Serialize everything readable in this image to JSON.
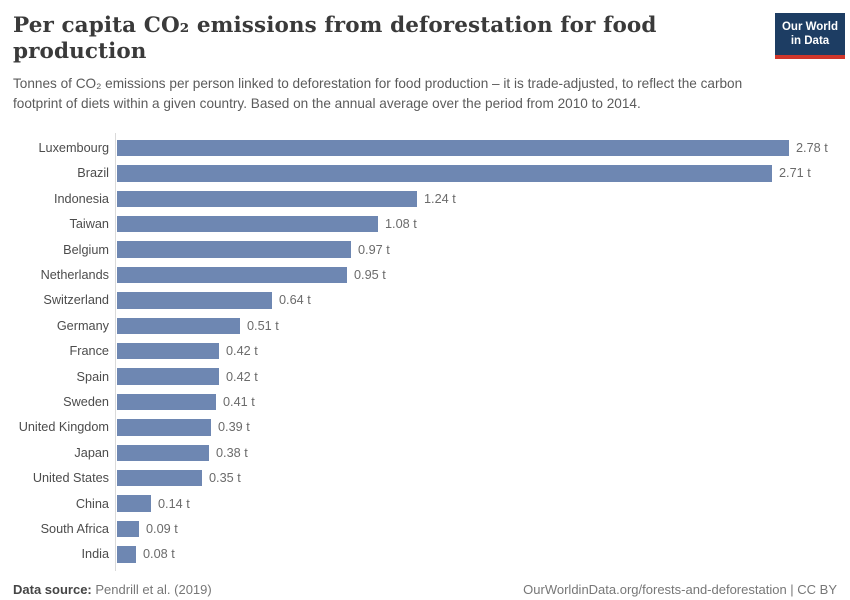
{
  "header": {
    "logo": {
      "line1": "Our World",
      "line2": "in Data",
      "bg_color": "#1d3d63",
      "accent_color": "#d0362b"
    }
  },
  "chart_data": {
    "type": "bar",
    "orientation": "horizontal",
    "title": "Per capita CO₂ emissions from deforestation for food production",
    "subtitle": "Tonnes of CO₂ emissions per person linked to deforestation for food production – it is trade-adjusted, to reflect the carbon footprint of diets within a given country. Based on the annual average over the period from 2010 to 2014.",
    "categories": [
      "Luxembourg",
      "Brazil",
      "Indonesia",
      "Taiwan",
      "Belgium",
      "Netherlands",
      "Switzerland",
      "Germany",
      "France",
      "Spain",
      "Sweden",
      "United Kingdom",
      "Japan",
      "United States",
      "China",
      "South Africa",
      "India"
    ],
    "values": [
      2.78,
      2.71,
      1.24,
      1.08,
      0.97,
      0.95,
      0.64,
      0.51,
      0.42,
      0.42,
      0.41,
      0.39,
      0.38,
      0.35,
      0.14,
      0.09,
      0.08
    ],
    "value_labels": [
      "2.78 t",
      "2.71 t",
      "1.24 t",
      "1.08 t",
      "0.97 t",
      "0.95 t",
      "0.64 t",
      "0.51 t",
      "0.42 t",
      "0.42 t",
      "0.41 t",
      "0.39 t",
      "0.38 t",
      "0.35 t",
      "0.14 t",
      "0.09 t",
      "0.08 t"
    ],
    "unit": "t",
    "xlabel": "",
    "ylabel": "",
    "xlim": [
      0,
      2.78
    ],
    "grid": false,
    "legend": false,
    "bar_color": "#6e87b2"
  },
  "footer": {
    "datasource_label": "Data source:",
    "datasource_value": "Pendrill et al. (2019)",
    "link_text": "OurWorldinData.org/forests-and-deforestation | CC BY"
  }
}
